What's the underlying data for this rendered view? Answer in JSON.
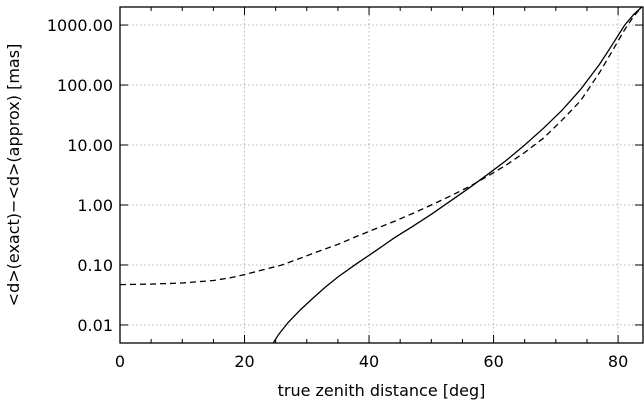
{
  "chart_data": {
    "type": "line",
    "xlabel": "true zenith distance [deg]",
    "ylabel": "<d>(exact)−<d>(approx) [mas]",
    "xlim": [
      0,
      84
    ],
    "ylim": [
      0.005,
      2000
    ],
    "yscale": "log",
    "grid": true,
    "x_ticks": [
      0,
      20,
      40,
      60,
      80
    ],
    "x_tick_labels": [
      "0",
      "20",
      "40",
      "60",
      "80"
    ],
    "y_ticks": [
      0.01,
      0.1,
      1,
      10,
      100,
      1000
    ],
    "y_tick_labels": [
      "0.01",
      "0.10",
      "1.00",
      "10.00",
      "100.00",
      "1000.00"
    ],
    "series": [
      {
        "style": "solid",
        "x": [
          24.6,
          25.5,
          27,
          29,
          31,
          33,
          35,
          38,
          41,
          44,
          47,
          50,
          53,
          56,
          59,
          62,
          65,
          68,
          71,
          74,
          77,
          79,
          81,
          82.5,
          83.8
        ],
        "y": [
          0.005,
          0.007,
          0.011,
          0.018,
          0.028,
          0.043,
          0.063,
          0.105,
          0.17,
          0.28,
          0.44,
          0.7,
          1.15,
          1.9,
          3.2,
          5.5,
          10,
          19,
          38,
          85,
          220,
          460,
          980,
          1500,
          2000
        ]
      },
      {
        "style": "dashed",
        "x": [
          0,
          5,
          10,
          15,
          18,
          20,
          23,
          26,
          29,
          32,
          35,
          38,
          41,
          44,
          47,
          50,
          53,
          56,
          59,
          62,
          65,
          68,
          71,
          74,
          77,
          79,
          81,
          82.5,
          83.8
        ],
        "y": [
          0.047,
          0.048,
          0.05,
          0.055,
          0.062,
          0.069,
          0.083,
          0.1,
          0.13,
          0.17,
          0.22,
          0.3,
          0.4,
          0.53,
          0.72,
          1.0,
          1.4,
          2.0,
          3.0,
          4.6,
          7.5,
          13,
          26,
          55,
          160,
          360,
          820,
          1400,
          2000
        ]
      }
    ]
  }
}
